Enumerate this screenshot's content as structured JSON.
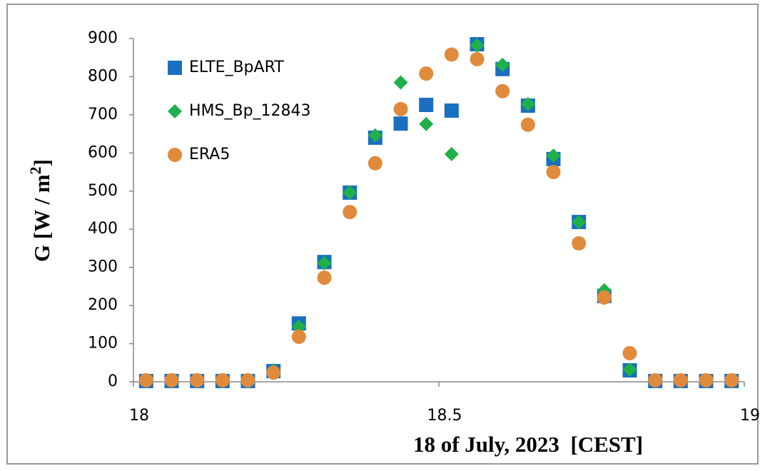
{
  "chart_data": {
    "type": "scatter",
    "xlabel": "18 of July, 2023  [CEST]",
    "ylabel": [
      "G [W / m",
      "2",
      "]"
    ],
    "xlim": [
      18,
      19
    ],
    "xticks": [
      18,
      18.5,
      19
    ],
    "ylim": [
      0,
      900
    ],
    "yticks": [
      0,
      100,
      200,
      300,
      400,
      500,
      600,
      700,
      800,
      900
    ],
    "x": [
      18.0208,
      18.0625,
      18.1042,
      18.1458,
      18.1875,
      18.2292,
      18.2708,
      18.3125,
      18.3542,
      18.3958,
      18.4375,
      18.4792,
      18.5208,
      18.5625,
      18.6042,
      18.6458,
      18.6875,
      18.7292,
      18.7708,
      18.8125,
      18.8542,
      18.8958,
      18.9375,
      18.9792
    ],
    "series": [
      {
        "name": "ELTE_BpART",
        "color": "#1a6fc0",
        "marker": "square",
        "values": [
          2,
          2,
          2,
          2,
          2,
          28,
          153,
          314,
          496,
          640,
          677,
          726,
          711,
          885,
          820,
          724,
          584,
          419,
          225,
          30,
          2,
          2,
          2,
          2
        ]
      },
      {
        "name": "HMS_Bp_12843",
        "color": "#1fb04a",
        "marker": "diamond",
        "values": [
          2,
          2,
          2,
          2,
          2,
          30,
          144,
          311,
          496,
          646,
          785,
          676,
          597,
          882,
          831,
          728,
          593,
          419,
          240,
          32,
          2,
          2,
          2,
          2
        ]
      },
      {
        "name": "ERA5",
        "color": "#e08a3c",
        "marker": "circle",
        "values": [
          4,
          4,
          4,
          4,
          4,
          24,
          118,
          273,
          445,
          573,
          715,
          808,
          858,
          846,
          762,
          674,
          550,
          363,
          221,
          75,
          4,
          4,
          4,
          4
        ]
      }
    ]
  }
}
